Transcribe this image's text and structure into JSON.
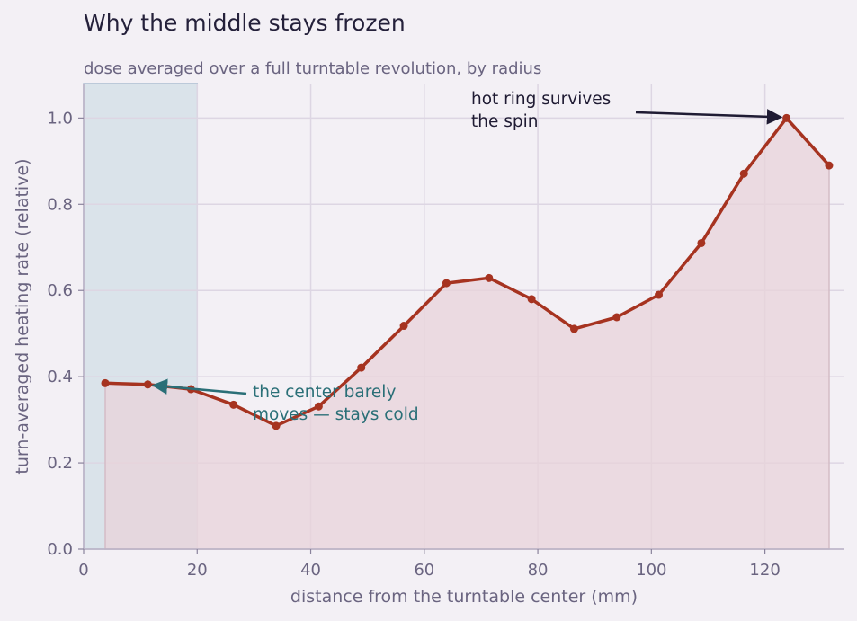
{
  "chart_data": {
    "type": "line",
    "title": "Why the middle stays frozen",
    "subtitle": "dose averaged over a full turntable revolution, by radius",
    "xlabel": "distance from the turntable center  (mm)",
    "ylabel": "turn-averaged heating rate  (relative)",
    "xlim": [
      0,
      134
    ],
    "ylim": [
      0,
      1.08
    ],
    "xticks": [
      0,
      20,
      40,
      60,
      80,
      100,
      120
    ],
    "yticks": [
      0.0,
      0.2,
      0.4,
      0.6,
      0.8,
      1.0
    ],
    "grid": true,
    "highlight_band": {
      "x": [
        0,
        20
      ]
    },
    "series": [
      {
        "x": [
          3.8,
          11.3,
          18.9,
          26.4,
          33.9,
          41.4,
          48.9,
          56.4,
          63.9,
          71.4,
          78.9,
          86.4,
          93.9,
          101.3,
          108.8,
          116.3,
          123.8,
          131.3
        ],
        "y": [
          0.385,
          0.382,
          0.371,
          0.335,
          0.286,
          0.331,
          0.421,
          0.518,
          0.617,
          0.629,
          0.58,
          0.511,
          0.538,
          0.59,
          0.71,
          0.871,
          1.0,
          0.89
        ],
        "color": "#a63320",
        "fill": "#e8d3da"
      }
    ],
    "annotations": [
      {
        "lines": [
          "hot ring survives",
          "the spin"
        ],
        "target": [
          123.8,
          1.0
        ],
        "color": "#1f1b33"
      },
      {
        "lines": [
          "the center barely",
          "moves — stays cold"
        ],
        "target": [
          11.3,
          0.382
        ],
        "color": "#2a6f77"
      }
    ]
  }
}
